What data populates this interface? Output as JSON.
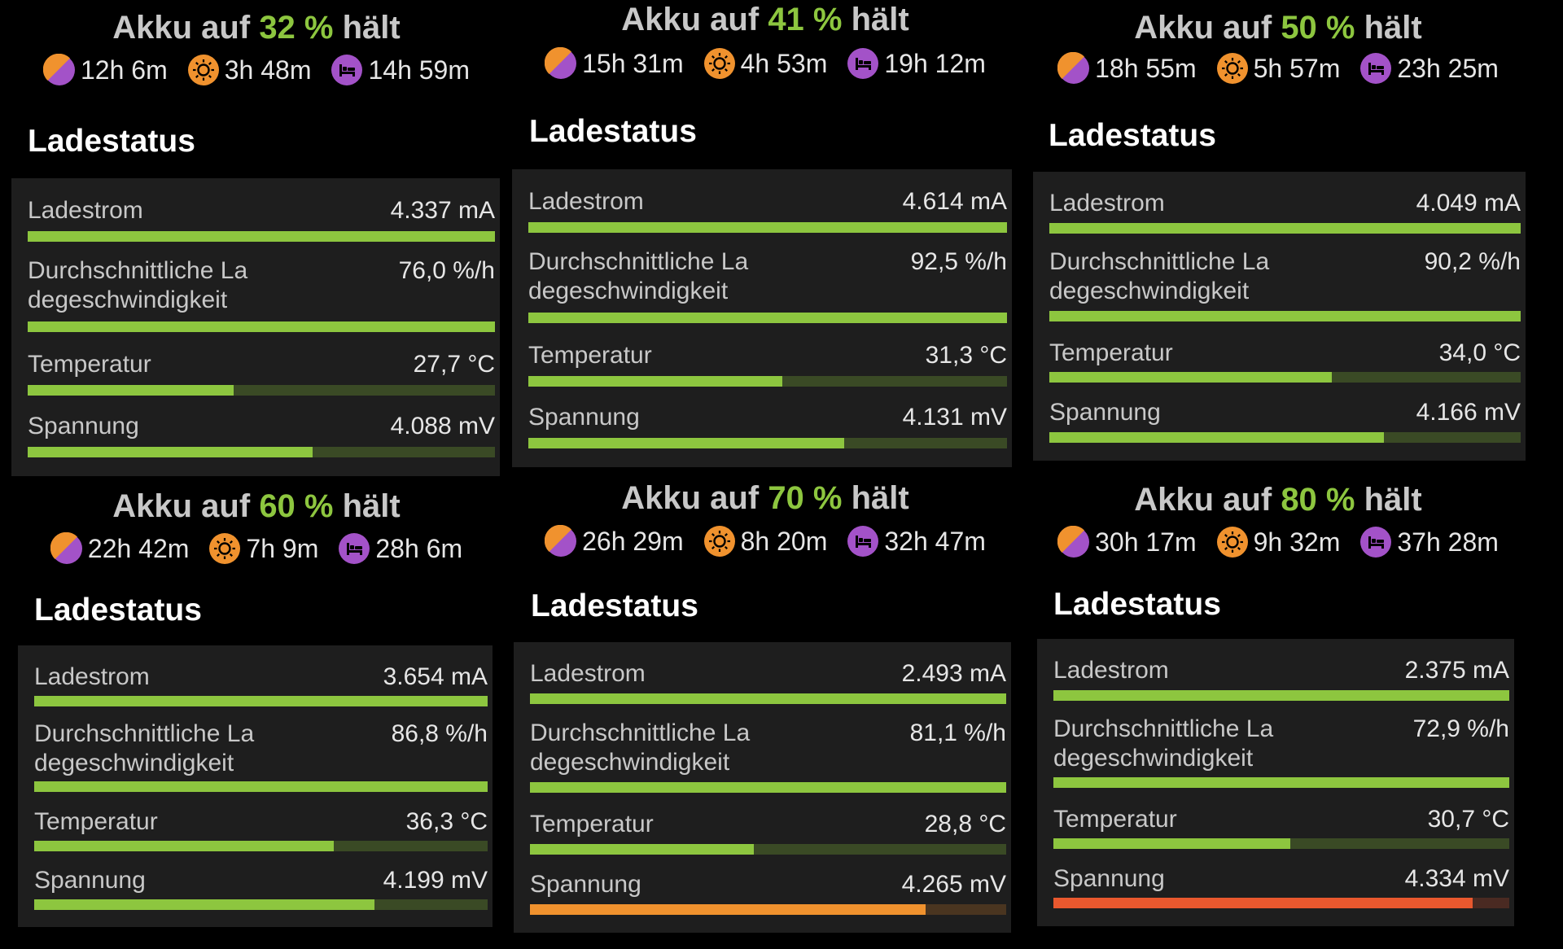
{
  "colors": {
    "accent_green": "#8dc63f",
    "track_green": "#3a4a25",
    "track_orange": "#4a3520",
    "orange": "#f0922e",
    "red_orange": "#e9582e",
    "track_red": "#4a2a22",
    "purple": "#a352c8",
    "card_bg": "#1e1e1e"
  },
  "text": {
    "title_prefix": "Akku auf",
    "title_suffix": "hält",
    "section": "Ladestatus"
  },
  "panels": [
    {
      "percent": "32 %",
      "stats": [
        {
          "icon": "sun-moon-icon",
          "value": "12h 6m"
        },
        {
          "icon": "sun-icon",
          "value": "3h 48m"
        },
        {
          "icon": "bed-icon",
          "value": "14h 59m"
        }
      ],
      "rows": [
        {
          "label": "Ladestrom",
          "value": "4.337 mA",
          "level": 1.0
        },
        {
          "label": "Durchschnittliche La\ndegeschwindigkeit",
          "value": "76,0 %/h",
          "level": 1.0
        },
        {
          "label": "Temperatur",
          "value": "27,7 °C",
          "level": 0.44
        },
        {
          "label": "Spannung",
          "value": "4.088 mV",
          "level": 0.61
        }
      ]
    },
    {
      "percent": "41 %",
      "stats": [
        {
          "icon": "sun-moon-icon",
          "value": "15h 31m"
        },
        {
          "icon": "sun-icon",
          "value": "4h 53m"
        },
        {
          "icon": "bed-icon",
          "value": "19h 12m"
        }
      ],
      "rows": [
        {
          "label": "Ladestrom",
          "value": "4.614 mA",
          "level": 1.0
        },
        {
          "label": "Durchschnittliche La\ndegeschwindigkeit",
          "value": "92,5 %/h",
          "level": 1.0
        },
        {
          "label": "Temperatur",
          "value": "31,3 °C",
          "level": 0.53
        },
        {
          "label": "Spannung",
          "value": "4.131 mV",
          "level": 0.66
        }
      ]
    },
    {
      "percent": "50 %",
      "stats": [
        {
          "icon": "sun-moon-icon",
          "value": "18h 55m"
        },
        {
          "icon": "sun-icon",
          "value": "5h 57m"
        },
        {
          "icon": "bed-icon",
          "value": "23h 25m"
        }
      ],
      "rows": [
        {
          "label": "Ladestrom",
          "value": "4.049 mA",
          "level": 1.0
        },
        {
          "label": "Durchschnittliche La\ndegeschwindigkeit",
          "value": "90,2 %/h",
          "level": 1.0
        },
        {
          "label": "Temperatur",
          "value": "34,0 °C",
          "level": 0.6
        },
        {
          "label": "Spannung",
          "value": "4.166 mV",
          "level": 0.71
        }
      ]
    },
    {
      "percent": "60 %",
      "stats": [
        {
          "icon": "sun-moon-icon",
          "value": "22h 42m"
        },
        {
          "icon": "sun-icon",
          "value": "7h 9m"
        },
        {
          "icon": "bed-icon",
          "value": "28h 6m"
        }
      ],
      "rows": [
        {
          "label": "Ladestrom",
          "value": "3.654 mA",
          "level": 1.0
        },
        {
          "label": "Durchschnittliche La\ndegeschwindigkeit",
          "value": "86,8 %/h",
          "level": 1.0
        },
        {
          "label": "Temperatur",
          "value": "36,3 °C",
          "level": 0.66
        },
        {
          "label": "Spannung",
          "value": "4.199 mV",
          "level": 0.75
        }
      ]
    },
    {
      "percent": "70 %",
      "stats": [
        {
          "icon": "sun-moon-icon",
          "value": "26h 29m"
        },
        {
          "icon": "sun-icon",
          "value": "8h 20m"
        },
        {
          "icon": "bed-icon",
          "value": "32h 47m"
        }
      ],
      "rows": [
        {
          "label": "Ladestrom",
          "value": "2.493 mA",
          "level": 1.0
        },
        {
          "label": "Durchschnittliche La\ndegeschwindigkeit",
          "value": "81,1 %/h",
          "level": 1.0
        },
        {
          "label": "Temperatur",
          "value": "28,8 °C",
          "level": 0.47
        },
        {
          "label": "Spannung",
          "value": "4.265 mV",
          "level": 0.83,
          "color": "orange"
        }
      ]
    },
    {
      "percent": "80 %",
      "stats": [
        {
          "icon": "sun-moon-icon",
          "value": "30h 17m"
        },
        {
          "icon": "sun-icon",
          "value": "9h 32m"
        },
        {
          "icon": "bed-icon",
          "value": "37h 28m"
        }
      ],
      "rows": [
        {
          "label": "Ladestrom",
          "value": "2.375 mA",
          "level": 1.0
        },
        {
          "label": "Durchschnittliche La\ndegeschwindigkeit",
          "value": "72,9 %/h",
          "level": 1.0
        },
        {
          "label": "Temperatur",
          "value": "30,7 °C",
          "level": 0.52
        },
        {
          "label": "Spannung",
          "value": "4.334 mV",
          "level": 0.92,
          "color": "red"
        }
      ]
    }
  ]
}
